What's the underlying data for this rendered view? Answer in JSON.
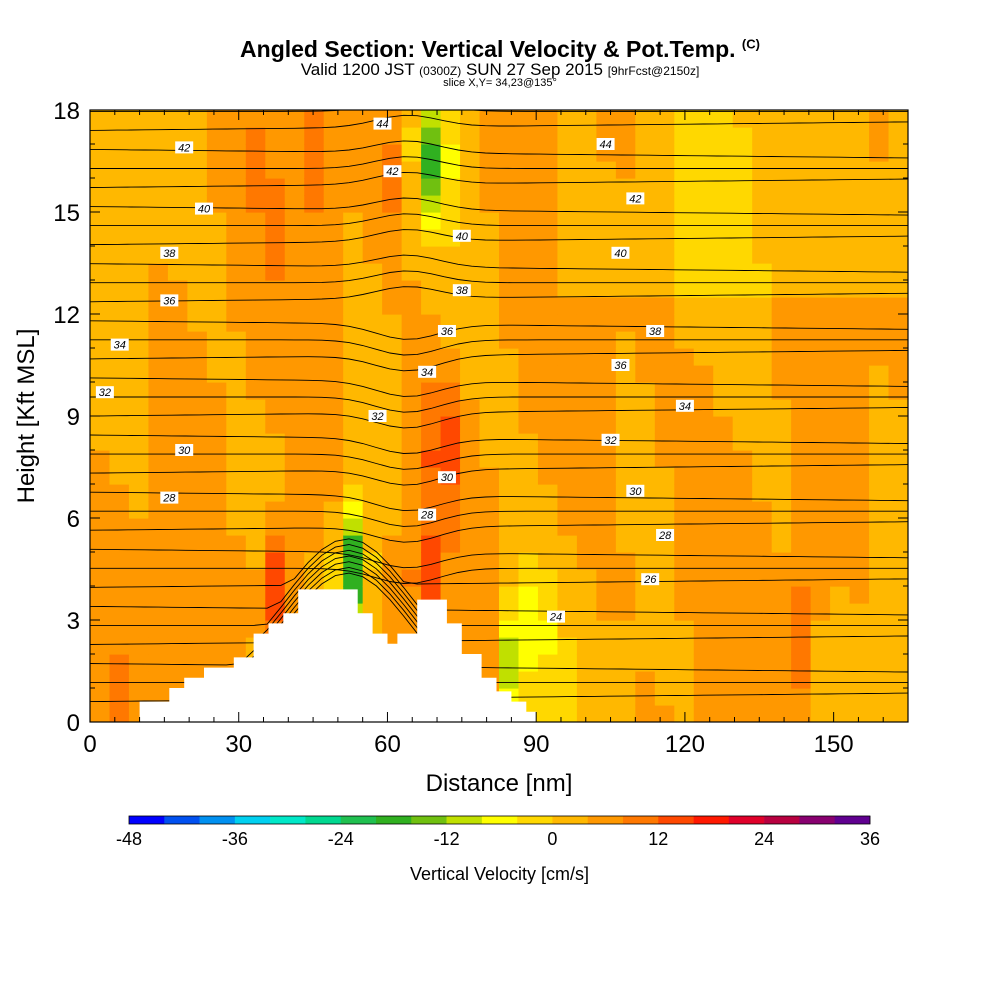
{
  "titles": {
    "main": "Angled Section: Vertical Velocity & Pot.Temp.",
    "main_unit": "(C)",
    "valid_pre": "Valid 1200 JST",
    "valid_z": "(0300Z)",
    "valid_date": "SUN 27 Sep 2015",
    "valid_fcst": "[9hrFcst@2150z]",
    "slice": "slice X,Y= 34,23@135°"
  },
  "chart_data": {
    "type": "heatmap",
    "title": "Angled Section: Vertical Velocity & Pot.Temp. (C)",
    "xlabel": "Distance [nm]",
    "ylabel": "Height [Kft MSL]",
    "xlim": [
      0,
      165
    ],
    "ylim": [
      0,
      18
    ],
    "x_ticks": [
      0,
      30,
      60,
      90,
      120,
      150
    ],
    "y_ticks": [
      0,
      3,
      6,
      9,
      12,
      15,
      18
    ],
    "colorbar": {
      "label": "Vertical Velocity [cm/s]",
      "ticks": [
        -48,
        -36,
        -24,
        -12,
        0,
        12,
        24,
        36
      ],
      "step": 4,
      "colors": [
        "#0000ff",
        "#0050f0",
        "#0090f0",
        "#00d0f0",
        "#00e8c8",
        "#00d890",
        "#20c050",
        "#30b020",
        "#70c010",
        "#c0e000",
        "#ffff00",
        "#ffd800",
        "#ffb800",
        "#ff9800",
        "#ff7800",
        "#ff4800",
        "#ff1800",
        "#e0002a",
        "#b80040",
        "#880070",
        "#600090"
      ]
    },
    "terrain_kft": [
      [
        0,
        0
      ],
      [
        10,
        0
      ],
      [
        10,
        0.6
      ],
      [
        16,
        0.6
      ],
      [
        16,
        1
      ],
      [
        19,
        1
      ],
      [
        19,
        1.3
      ],
      [
        23,
        1.3
      ],
      [
        23,
        1.6
      ],
      [
        29,
        1.6
      ],
      [
        29,
        1.9
      ],
      [
        33,
        1.9
      ],
      [
        33,
        2.6
      ],
      [
        36,
        2.6
      ],
      [
        36,
        2.9
      ],
      [
        39,
        2.9
      ],
      [
        39,
        3.2
      ],
      [
        42,
        3.2
      ],
      [
        42,
        3.9
      ],
      [
        54,
        3.9
      ],
      [
        54,
        3.2
      ],
      [
        57,
        3.2
      ],
      [
        57,
        2.6
      ],
      [
        60,
        2.6
      ],
      [
        60,
        2.3
      ],
      [
        62,
        2.3
      ],
      [
        62,
        2.6
      ],
      [
        66,
        2.6
      ],
      [
        66,
        3.6
      ],
      [
        72,
        3.6
      ],
      [
        72,
        2.9
      ],
      [
        75,
        2.9
      ],
      [
        75,
        2.0
      ],
      [
        79,
        2.0
      ],
      [
        79,
        1.3
      ],
      [
        82,
        1.3
      ],
      [
        82,
        0.9
      ],
      [
        85,
        0.9
      ],
      [
        85,
        0.6
      ],
      [
        88,
        0.6
      ],
      [
        88,
        0.3
      ],
      [
        90,
        0.3
      ],
      [
        90,
        0
      ],
      [
        165,
        0
      ]
    ],
    "velocity_features": [
      {
        "x": 46,
        "y": 16.5,
        "value": 12
      },
      {
        "x": 61,
        "y": 16.0,
        "value": 10
      },
      {
        "x": 69,
        "y": 16.5,
        "value": -18
      },
      {
        "x": 71,
        "y": 8.0,
        "value": 16
      },
      {
        "x": 38,
        "y": 3.8,
        "value": 16
      },
      {
        "x": 68,
        "y": 4.5,
        "value": 14
      },
      {
        "x": 53,
        "y": 4.5,
        "value": -20
      },
      {
        "x": 85,
        "y": 1.8,
        "value": -10
      },
      {
        "x": 90,
        "y": 2.7,
        "value": -8
      },
      {
        "x": 120,
        "y": 13.5,
        "value": -2
      },
      {
        "x": 143,
        "y": 2.6,
        "value": 12
      }
    ],
    "theta_labels": [
      {
        "text": "44",
        "x": 59,
        "y": 17.6
      },
      {
        "text": "44",
        "x": 104,
        "y": 17.0
      },
      {
        "text": "42",
        "x": 19,
        "y": 16.9
      },
      {
        "text": "42",
        "x": 61,
        "y": 16.2
      },
      {
        "text": "42",
        "x": 110,
        "y": 15.4
      },
      {
        "text": "40",
        "x": 23,
        "y": 15.1
      },
      {
        "text": "40",
        "x": 75,
        "y": 14.3
      },
      {
        "text": "40",
        "x": 107,
        "y": 13.8
      },
      {
        "text": "38",
        "x": 16,
        "y": 13.8
      },
      {
        "text": "38",
        "x": 75,
        "y": 12.7
      },
      {
        "text": "38",
        "x": 114,
        "y": 11.5
      },
      {
        "text": "36",
        "x": 16,
        "y": 12.4
      },
      {
        "text": "36",
        "x": 72,
        "y": 11.5
      },
      {
        "text": "36",
        "x": 107,
        "y": 10.5
      },
      {
        "text": "34",
        "x": 6,
        "y": 11.1
      },
      {
        "text": "34",
        "x": 68,
        "y": 10.3
      },
      {
        "text": "34",
        "x": 120,
        "y": 9.3
      },
      {
        "text": "32",
        "x": 3,
        "y": 9.7
      },
      {
        "text": "32",
        "x": 58,
        "y": 9.0
      },
      {
        "text": "32",
        "x": 105,
        "y": 8.3
      },
      {
        "text": "30",
        "x": 19,
        "y": 8.0
      },
      {
        "text": "30",
        "x": 72,
        "y": 7.2
      },
      {
        "text": "30",
        "x": 110,
        "y": 6.8
      },
      {
        "text": "28",
        "x": 16,
        "y": 6.6
      },
      {
        "text": "28",
        "x": 68,
        "y": 6.1
      },
      {
        "text": "28",
        "x": 116,
        "y": 5.5
      },
      {
        "text": "26",
        "x": 113,
        "y": 4.2
      },
      {
        "text": "24",
        "x": 94,
        "y": 3.1
      }
    ]
  }
}
